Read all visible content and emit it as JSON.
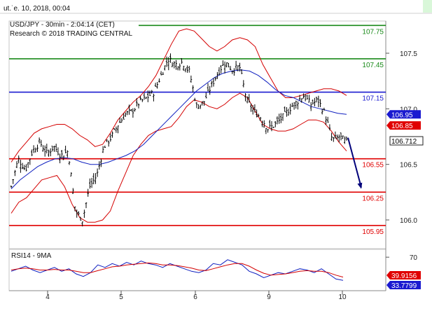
{
  "header": {
    "date_fragment": "ut.˙e. 10, 2018, 00:04",
    "symbol_line": "USD/JPY - 30min - 2:04:14 (CET)",
    "research_line": "Research © 2018 TRADING CENTRAL"
  },
  "colors": {
    "candles": "#000000",
    "bollinger": "#d40000",
    "moving_average": "#1020c0",
    "target_high": "#1a8a1a",
    "pivot": "#1a1ad0",
    "support": "#e00000",
    "arrow": "#00007a",
    "rsi": "#1020c0",
    "rsi_ma": "#d40000",
    "badge_blue": "#1a1ad0",
    "badge_red": "#e00000"
  },
  "chart_data": [
    {
      "type": "candlestick",
      "title": "USD/JPY - 30min",
      "xlabel": "",
      "ylabel": "",
      "x_ticks": [
        "4",
        "5",
        "6",
        "9",
        "10"
      ],
      "y_ticks": [
        "107.5",
        "107.0",
        "106.5",
        "106.0"
      ],
      "ylim": [
        105.92,
        107.85
      ],
      "grid": false,
      "price_path": [
        106.3,
        106.55,
        106.45,
        106.62,
        106.7,
        106.6,
        106.66,
        106.58,
        106.62,
        106.08,
        106.0,
        106.3,
        106.4,
        106.66,
        106.74,
        106.86,
        106.95,
        106.98,
        107.06,
        107.1,
        107.15,
        107.3,
        107.45,
        107.4,
        107.42,
        107.33,
        107.02,
        107.06,
        107.2,
        107.33,
        107.42,
        107.35,
        107.38,
        107.08,
        106.98,
        106.92,
        106.82,
        106.86,
        106.92,
        107.0,
        107.06,
        107.12,
        107.04,
        107.08,
        106.95,
        106.72,
        106.75,
        106.7
      ],
      "series": [
        {
          "name": "",
          "kind": "bollinger_upper",
          "values": [
            106.52,
            106.62,
            106.7,
            106.78,
            106.82,
            106.84,
            106.86,
            106.86,
            106.82,
            106.76,
            106.72,
            106.66,
            106.68,
            106.78,
            106.9,
            106.98,
            107.06,
            107.12,
            107.2,
            107.3,
            107.44,
            107.58,
            107.7,
            107.72,
            107.7,
            107.63,
            107.56,
            107.52,
            107.56,
            107.62,
            107.64,
            107.62,
            107.56,
            107.4,
            107.28,
            107.16,
            107.1,
            107.1,
            107.12,
            107.14,
            107.16,
            107.18,
            107.18,
            107.16,
            107.12
          ]
        },
        {
          "name": "",
          "kind": "bollinger_lower",
          "values": [
            106.06,
            106.16,
            106.2,
            106.28,
            106.36,
            106.38,
            106.4,
            106.3,
            106.14,
            106.02,
            105.98,
            105.98,
            106.0,
            106.08,
            106.26,
            106.42,
            106.58,
            106.68,
            106.76,
            106.8,
            106.82,
            106.84,
            106.92,
            107.02,
            107.08,
            107.06,
            107.02,
            107.0,
            107.04,
            107.1,
            107.14,
            107.1,
            106.98,
            106.86,
            106.82,
            106.8,
            106.8,
            106.82,
            106.86,
            106.9,
            106.9,
            106.88,
            106.8,
            106.7,
            106.62
          ]
        },
        {
          "name": "",
          "kind": "moving_average",
          "values": [
            106.28,
            106.36,
            106.42,
            106.48,
            106.52,
            106.55,
            106.56,
            106.55,
            106.52,
            106.5,
            106.5,
            106.52,
            106.55,
            106.58,
            106.62,
            106.68,
            106.76,
            106.84,
            106.92,
            107.0,
            107.08,
            107.16,
            107.22,
            107.28,
            107.32,
            107.34,
            107.35,
            107.34,
            107.3,
            107.24,
            107.17,
            107.12,
            107.1,
            107.06,
            107.02,
            107.0,
            106.98,
            106.96,
            106.95
          ]
        }
      ],
      "horizontal_levels": [
        {
          "value": 107.75,
          "label": "107.75",
          "kind": "target"
        },
        {
          "value": 107.45,
          "label": "107.45",
          "kind": "target"
        },
        {
          "value": 107.15,
          "label": "107.15",
          "kind": "pivot"
        },
        {
          "value": 106.55,
          "label": "106.55",
          "kind": "support"
        },
        {
          "value": 106.25,
          "label": "106.25",
          "kind": "support"
        },
        {
          "value": 105.95,
          "label": "105.95",
          "kind": "support"
        }
      ],
      "price_badges": [
        {
          "value": 106.95,
          "label": "106.95",
          "kind": "blue"
        },
        {
          "value": 106.85,
          "label": "106.85",
          "kind": "red"
        },
        {
          "value": 106.712,
          "label": "106.712",
          "kind": "last"
        }
      ],
      "arrow": {
        "from": 106.74,
        "to": 106.28
      }
    },
    {
      "type": "line",
      "title": "RSI14 - 9MA",
      "y_ticks": [
        "70"
      ],
      "ylim": [
        20,
        80
      ],
      "grid": false,
      "series": [
        {
          "name": "",
          "kind": "rsi",
          "values": [
            48,
            52,
            56,
            50,
            46,
            50,
            54,
            48,
            52,
            44,
            40,
            46,
            58,
            54,
            60,
            56,
            62,
            58,
            64,
            60,
            58,
            54,
            60,
            56,
            52,
            48,
            46,
            50,
            60,
            58,
            66,
            62,
            58,
            48,
            44,
            38,
            42,
            46,
            44,
            48,
            52,
            50,
            46,
            52,
            44,
            36,
            34
          ]
        },
        {
          "name": "",
          "kind": "rsi_ma",
          "values": [
            50,
            52,
            53,
            52,
            50,
            50,
            51,
            50,
            50,
            48,
            46,
            46,
            49,
            52,
            55,
            56,
            58,
            59,
            60,
            61,
            60,
            58,
            58,
            57,
            55,
            53,
            50,
            49,
            52,
            55,
            58,
            60,
            60,
            56,
            50,
            45,
            42,
            43,
            44,
            46,
            48,
            49,
            48,
            48,
            46,
            42,
            39
          ]
        }
      ],
      "price_badges": [
        {
          "value": 39.9156,
          "label": "39.9156",
          "kind": "red"
        },
        {
          "value": 33.7799,
          "label": "33.7799",
          "kind": "blue"
        }
      ]
    }
  ]
}
